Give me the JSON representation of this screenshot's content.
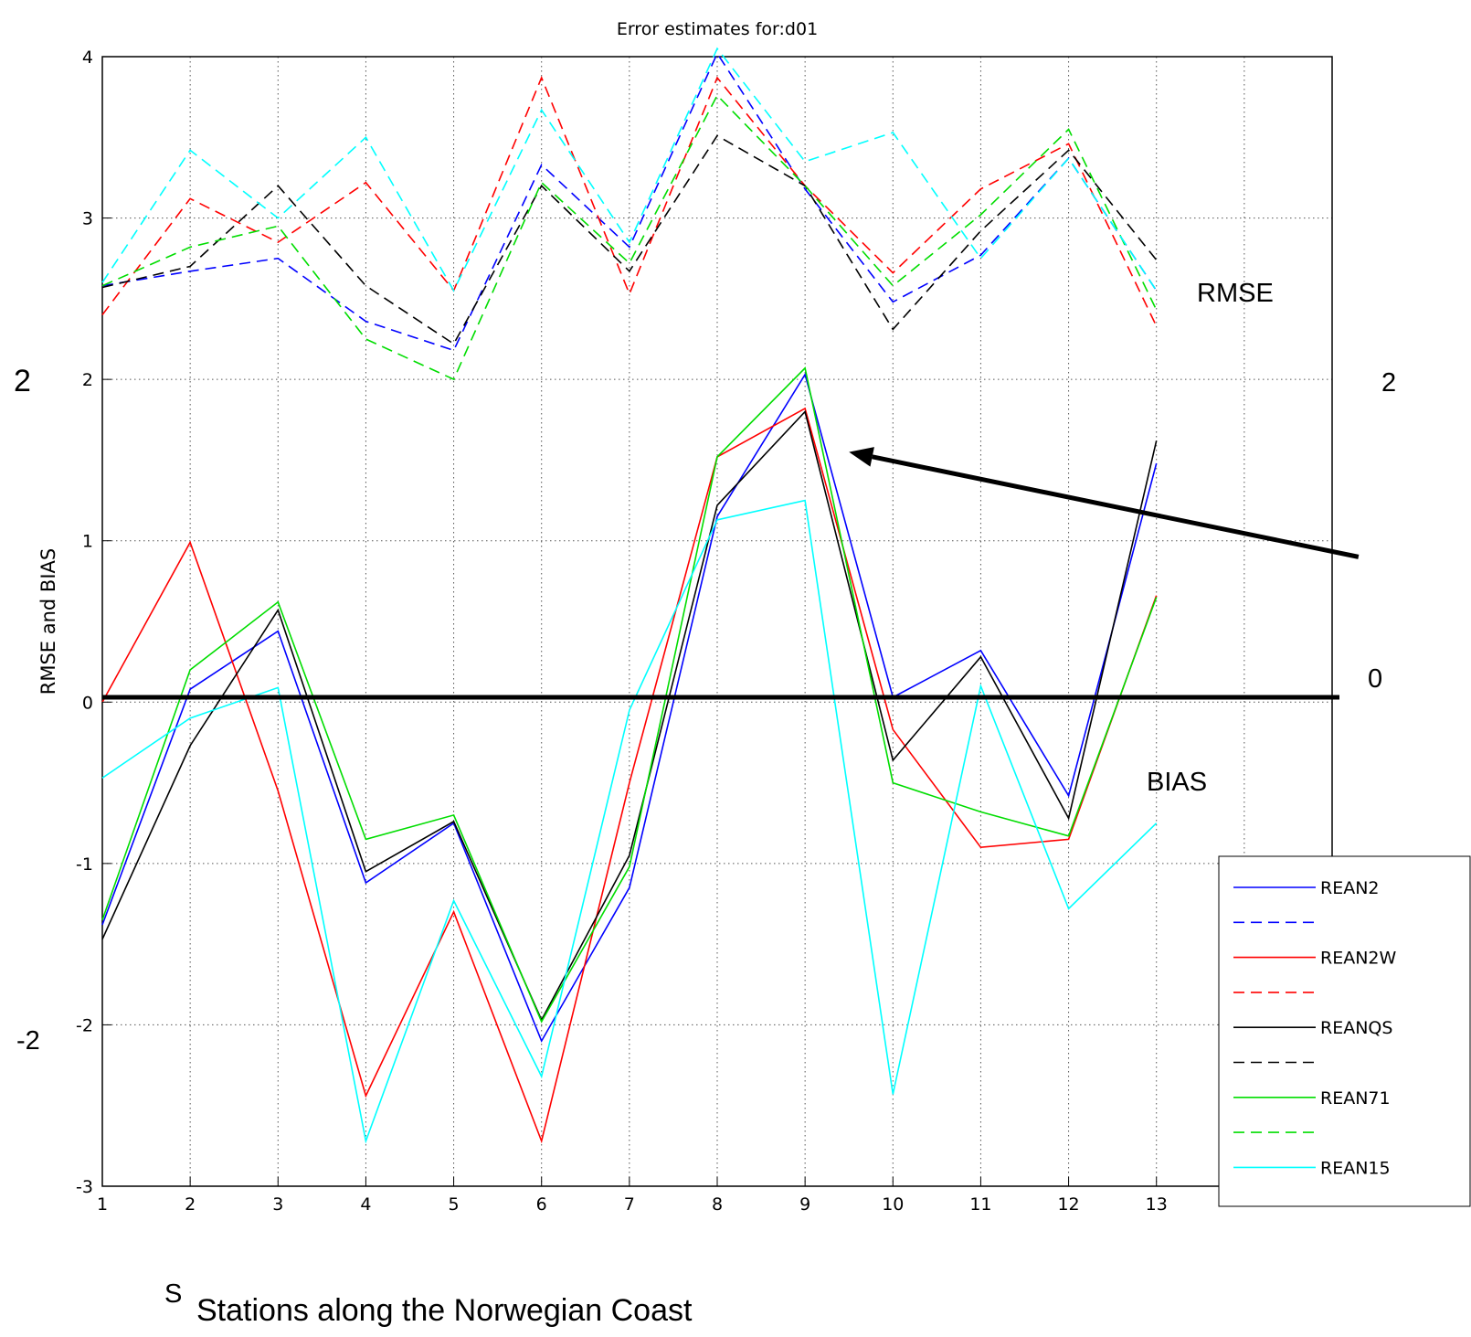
{
  "chart_data": {
    "type": "line",
    "title": "Error estimates for:d01",
    "xlabel": "Stations along the Norwegian Coast",
    "xlabel_fragment": "S",
    "ylabel": "RMSE and BIAS",
    "x": [
      1,
      2,
      3,
      4,
      5,
      6,
      7,
      8,
      9,
      10,
      11,
      12,
      13
    ],
    "xlim": [
      1,
      15
    ],
    "ylim": [
      -3,
      4
    ],
    "xticks": [
      1,
      2,
      3,
      4,
      5,
      6,
      7,
      8,
      9,
      10,
      11,
      12,
      13
    ],
    "yticks": [
      -3,
      -2,
      -1,
      0,
      1,
      2,
      3,
      4
    ],
    "grid": true,
    "legend_position": "bottom-right",
    "series": [
      {
        "name": "REAN2",
        "color": "#0000ff",
        "style": "solid",
        "values": [
          -1.38,
          0.08,
          0.44,
          -1.12,
          -0.75,
          -2.1,
          -1.15,
          1.15,
          2.03,
          0.03,
          0.32,
          -0.58,
          1.48
        ]
      },
      {
        "name": "",
        "color": "#0000ff",
        "style": "dashed",
        "values": [
          2.58,
          2.67,
          2.75,
          2.36,
          2.18,
          3.33,
          2.82,
          4.02,
          3.18,
          2.48,
          2.77,
          3.37,
          2.55
        ]
      },
      {
        "name": "REAN2W",
        "color": "#ff0000",
        "style": "solid",
        "values": [
          0.0,
          0.99,
          -0.55,
          -2.44,
          -1.3,
          -2.72,
          -0.5,
          1.52,
          1.82,
          -0.17,
          -0.9,
          -0.85,
          0.66
        ]
      },
      {
        "name": "",
        "color": "#ff0000",
        "style": "dashed",
        "values": [
          2.4,
          3.12,
          2.85,
          3.22,
          2.55,
          3.87,
          2.53,
          3.87,
          3.2,
          2.66,
          3.18,
          3.46,
          2.33
        ]
      },
      {
        "name": "REANQS",
        "color": "#000000",
        "style": "solid",
        "values": [
          -1.47,
          -0.27,
          0.57,
          -1.05,
          -0.74,
          -1.97,
          -0.95,
          1.22,
          1.8,
          -0.36,
          0.28,
          -0.72,
          1.62
        ]
      },
      {
        "name": "",
        "color": "#000000",
        "style": "dashed",
        "values": [
          2.57,
          2.7,
          3.2,
          2.58,
          2.22,
          3.2,
          2.67,
          3.51,
          3.2,
          2.31,
          2.92,
          3.42,
          2.74
        ]
      },
      {
        "name": "REAN71",
        "color": "#00dd00",
        "style": "solid",
        "values": [
          -1.35,
          0.2,
          0.62,
          -0.85,
          -0.7,
          -1.98,
          -1.02,
          1.52,
          2.07,
          -0.5,
          -0.68,
          -0.83,
          0.65
        ]
      },
      {
        "name": "",
        "color": "#00dd00",
        "style": "dashed",
        "values": [
          2.58,
          2.82,
          2.95,
          2.25,
          2.0,
          3.22,
          2.72,
          3.76,
          3.2,
          2.58,
          3.02,
          3.55,
          2.43
        ]
      },
      {
        "name": "REAN15",
        "color": "#00ffff",
        "style": "solid",
        "values": [
          -0.47,
          -0.1,
          0.09,
          -2.72,
          -1.23,
          -2.32,
          -0.05,
          1.13,
          1.25,
          -2.43,
          0.1,
          -1.28,
          -0.75
        ]
      },
      {
        "name": "",
        "color": "#00ffff",
        "style": "dashed",
        "values": [
          2.6,
          3.42,
          3.0,
          3.5,
          2.55,
          3.67,
          2.85,
          4.05,
          3.35,
          3.53,
          2.75,
          3.37,
          2.55
        ]
      }
    ],
    "annotations": {
      "rmse_label": "RMSE",
      "bias_label": "BIAS",
      "left_2": "2",
      "left_neg2": "-2",
      "right_2": "2",
      "right_0": "0",
      "zero_line_value": 0.03,
      "arrow_from": [
        15.3,
        0.9
      ],
      "arrow_to": [
        9.5,
        1.55
      ]
    }
  },
  "legend": {
    "items": [
      {
        "label": "REAN2",
        "color": "#0000ff",
        "style": "solid"
      },
      {
        "label": "",
        "color": "#0000ff",
        "style": "dashed"
      },
      {
        "label": "REAN2W",
        "color": "#ff0000",
        "style": "solid"
      },
      {
        "label": "",
        "color": "#ff0000",
        "style": "dashed"
      },
      {
        "label": "REANQS",
        "color": "#000000",
        "style": "solid"
      },
      {
        "label": "",
        "color": "#000000",
        "style": "dashed"
      },
      {
        "label": "REAN71",
        "color": "#00dd00",
        "style": "solid"
      },
      {
        "label": "",
        "color": "#00dd00",
        "style": "dashed"
      },
      {
        "label": "REAN15",
        "color": "#00ffff",
        "style": "solid"
      }
    ]
  }
}
